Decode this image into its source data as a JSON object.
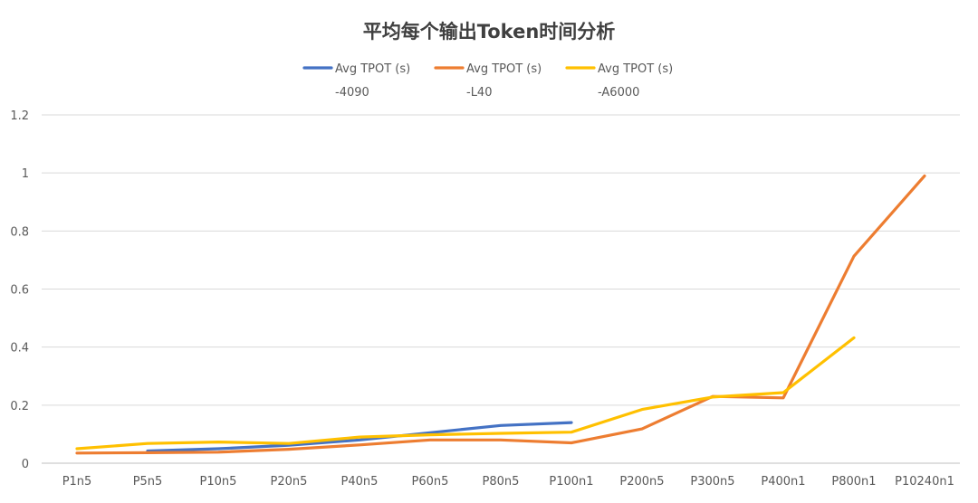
{
  "chart_data": {
    "type": "line",
    "title": "平均每个输出Token时间分析",
    "xlabel": "",
    "ylabel": "",
    "ylim": [
      0,
      1.2
    ],
    "yticks": [
      0,
      0.2,
      0.4,
      0.6,
      0.8,
      1,
      1.2
    ],
    "ytick_labels": [
      "0",
      "0.2",
      "0.4",
      "0.6",
      "0.8",
      "1",
      "1.2"
    ],
    "grid": true,
    "legend_position": "top",
    "categories": [
      "P1n5",
      "P5n5",
      "P10n5",
      "P20n5",
      "P40n5",
      "P60n5",
      "P80n5",
      "P100n1",
      "P200n5",
      "P300n5",
      "P400n1",
      "P800n1",
      "P10240n1"
    ],
    "series": [
      {
        "name": "Avg TPOT (s)\n-4090",
        "name_line1": "Avg TPOT (s)",
        "name_line2": "-4090",
        "color": "#4472C4",
        "values": [
          null,
          0.042,
          0.05,
          0.062,
          0.08,
          0.105,
          0.13,
          0.14,
          null,
          null,
          null,
          null,
          null
        ]
      },
      {
        "name": "Avg TPOT (s)\n-L40",
        "name_line1": "Avg TPOT (s)",
        "name_line2": "-L40",
        "color": "#ED7D31",
        "values": [
          0.035,
          0.036,
          0.038,
          0.048,
          0.063,
          0.08,
          0.08,
          0.07,
          0.118,
          0.23,
          0.225,
          0.713,
          0.99
        ]
      },
      {
        "name": "Avg TPOT (s)\n-A6000",
        "name_line1": "Avg TPOT (s)",
        "name_line2": "-A6000",
        "color": "#FFC000",
        "values": [
          0.05,
          0.068,
          0.073,
          0.068,
          0.09,
          0.098,
          0.103,
          0.107,
          0.185,
          0.228,
          0.243,
          0.432,
          null
        ]
      }
    ]
  }
}
